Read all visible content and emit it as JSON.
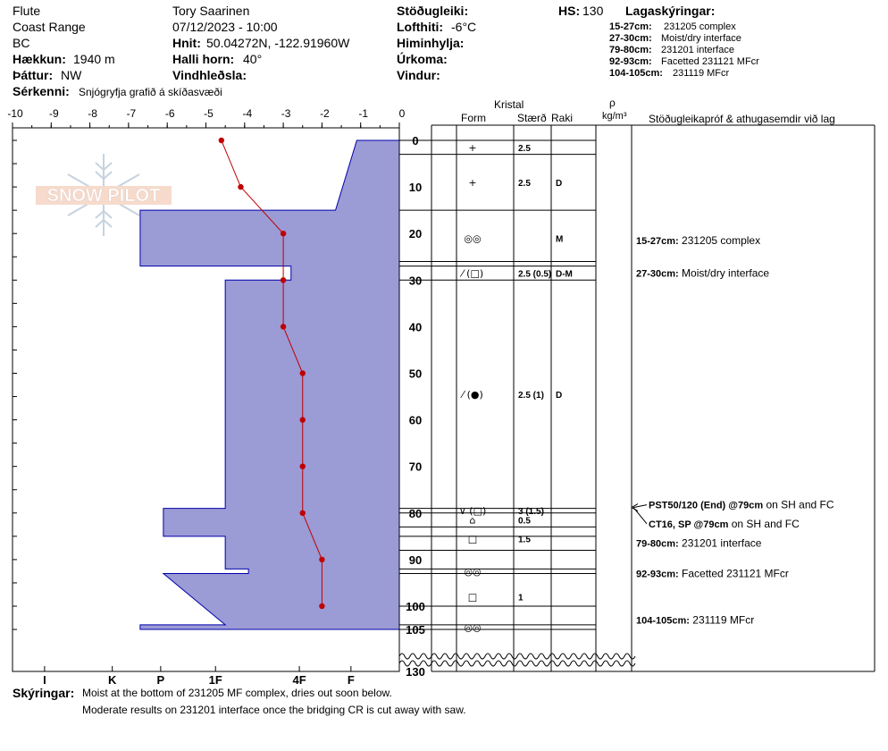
{
  "header": {
    "location": [
      "Flute",
      "Coast Range",
      "BC"
    ],
    "elevation_label": "Hækkun:",
    "elevation_value": "1940 m",
    "aspect_label": "Þáttur:",
    "aspect_value": "NW",
    "observer": "Tory Saarinen",
    "datetime": "07/12/2023 - 10:00",
    "coords_label": "Hnit:",
    "coords_value": "50.04272N, -122.91960W",
    "slope_label": "Halli horn:",
    "slope_value": "40°",
    "wind_loading_label": "Vindhleðsla:",
    "stability_label": "Stöðugleiki:",
    "air_temp_label": "Lofthiti:",
    "air_temp_value": "-6°C",
    "sky_label": "Himinhylja:",
    "precip_label": "Úrkoma:",
    "wind_label": "Vindur:",
    "hs_label": "HS:",
    "hs_value": "130",
    "features_label": "Sérkenni:",
    "features_value": "Snjógryfja grafið á skíðasvæði"
  },
  "legend": {
    "title": "Lagaskýringar:",
    "items": [
      {
        "depth": "15-27cm:",
        "text": "231205 complex"
      },
      {
        "depth": "27-30cm:",
        "text": "Moist/dry interface"
      },
      {
        "depth": "79-80cm:",
        "text": "231201 interface"
      },
      {
        "depth": "92-93cm:",
        "text": "Facetted 231121 MFcr"
      },
      {
        "depth": "104-105cm:",
        "text": "231119 MFcr"
      }
    ]
  },
  "columns": {
    "crystal": "Kristal",
    "form": "Form",
    "size": "Stærð",
    "moisture": "Raki",
    "rho": "ρ",
    "density_unit": "kg/m³",
    "tests": "Stöðugleikapróf & athugasemdir við lag"
  },
  "comments": {
    "label": "Skýringar:",
    "lines": [
      "Moist at the bottom of 231205 MF complex, dries out soon below.",
      "Moderate results on 231201 interface once the bridging CR is cut away with saw."
    ]
  },
  "watermark": "SNOW PILOT",
  "colors": {
    "layer_fill": "#9b9bd6",
    "layer_stroke": "#0000aa",
    "temp": "#c00000"
  },
  "chart_data": {
    "type": "snow-profile",
    "temp_axis_ticks": [
      "-10",
      "-9",
      "-8",
      "-7",
      "-6",
      "-5",
      "-4",
      "-3",
      "-2",
      "-1",
      "0"
    ],
    "temp_range": [
      -10,
      0
    ],
    "hardness_ticks": [
      {
        "label": "I",
        "pos": 5.5
      },
      {
        "label": "K",
        "pos": 4.45
      },
      {
        "label": "P",
        "pos": 3.7
      },
      {
        "label": "1F",
        "pos": 2.85
      },
      {
        "label": "4F",
        "pos": 1.55
      },
      {
        "label": "F",
        "pos": 0.75
      }
    ],
    "depth_ticks": [
      "0",
      "10",
      "20",
      "30",
      "40",
      "50",
      "60",
      "70",
      "80",
      "90",
      "100",
      "105",
      "130"
    ],
    "depth_range": [
      0,
      130
    ],
    "hardness_profile": [
      [
        0,
        -1.1
      ],
      [
        0,
        -1.1
      ],
      [
        15,
        -1.65
      ],
      [
        15,
        -6.7
      ],
      [
        27,
        -6.7
      ],
      [
        27,
        -2.8
      ],
      [
        30,
        -2.8
      ],
      [
        30,
        -4.5
      ],
      [
        79,
        -4.5
      ],
      [
        79,
        -6.1
      ],
      [
        85,
        -6.1
      ],
      [
        85,
        -4.5
      ],
      [
        92,
        -4.5
      ],
      [
        92,
        -3.9
      ],
      [
        93,
        -3.9
      ],
      [
        93,
        -6.1
      ],
      [
        104,
        -4.5
      ],
      [
        104,
        -6.7
      ],
      [
        105,
        -6.7
      ]
    ],
    "temperature": [
      {
        "depth": 0,
        "temp": -4.6
      },
      {
        "depth": 10,
        "temp": -4.1
      },
      {
        "depth": 20,
        "temp": -3.0
      },
      {
        "depth": 30,
        "temp": -3.0
      },
      {
        "depth": 40,
        "temp": -3.0
      },
      {
        "depth": 50,
        "temp": -2.5
      },
      {
        "depth": 60,
        "temp": -2.5
      },
      {
        "depth": 70,
        "temp": -2.5
      },
      {
        "depth": 80,
        "temp": -2.5
      },
      {
        "depth": 90,
        "temp": -2.0
      },
      {
        "depth": 100,
        "temp": -2.0
      }
    ],
    "layer_bounds": [
      0,
      3,
      15,
      26,
      27,
      30,
      79,
      80,
      83,
      85,
      88,
      92,
      93,
      100,
      104,
      105
    ],
    "crystal_rows": [
      {
        "mid": 1.5,
        "form": "+",
        "size": "2.5",
        "moist": ""
      },
      {
        "mid": 9,
        "form": "+",
        "size": "2.5",
        "moist": "D"
      },
      {
        "mid": 21,
        "form": "◎◎",
        "size": "",
        "moist": "M"
      },
      {
        "mid": 28.5,
        "form": "⁄ (□)",
        "size": "2.5 (0.5)",
        "moist": "D-M"
      },
      {
        "mid": 54.5,
        "form": "⁄ (●)",
        "size": "2.5 (1)",
        "moist": "D"
      },
      {
        "mid": 79.5,
        "form": "∨ (□)",
        "size": "3 (1.5)",
        "moist": ""
      },
      {
        "mid": 81.5,
        "form": "⌂",
        "size": "0.5",
        "moist": ""
      },
      {
        "mid": 85.5,
        "form": "□",
        "size": "1.5",
        "moist": ""
      },
      {
        "mid": 92.5,
        "form": "◎◎",
        "size": "",
        "moist": ""
      },
      {
        "mid": 98,
        "form": "□",
        "size": "1",
        "moist": ""
      },
      {
        "mid": 104.5,
        "form": "◎◎",
        "size": "",
        "moist": ""
      }
    ],
    "layer_notes": [
      {
        "depth": 21.5,
        "label": "15-27cm:",
        "text": "231205 complex"
      },
      {
        "depth": 28.5,
        "label": "27-30cm:",
        "text": "Moist/dry interface"
      },
      {
        "depth": 86.5,
        "label": "79-80cm:",
        "text": "231201 interface"
      },
      {
        "depth": 93,
        "label": "92-93cm:",
        "text": "Facetted 231121 MFcr"
      },
      {
        "depth": 103,
        "label": "104-105cm:",
        "text": "231119 MFcr"
      }
    ],
    "tests": [
      {
        "depth": 79,
        "label": "PST50/120 (End) @79cm",
        "text": "on SH and FC"
      },
      {
        "depth": 82.5,
        "label": "CT16, SP @79cm",
        "text": "on SH and FC"
      }
    ]
  }
}
